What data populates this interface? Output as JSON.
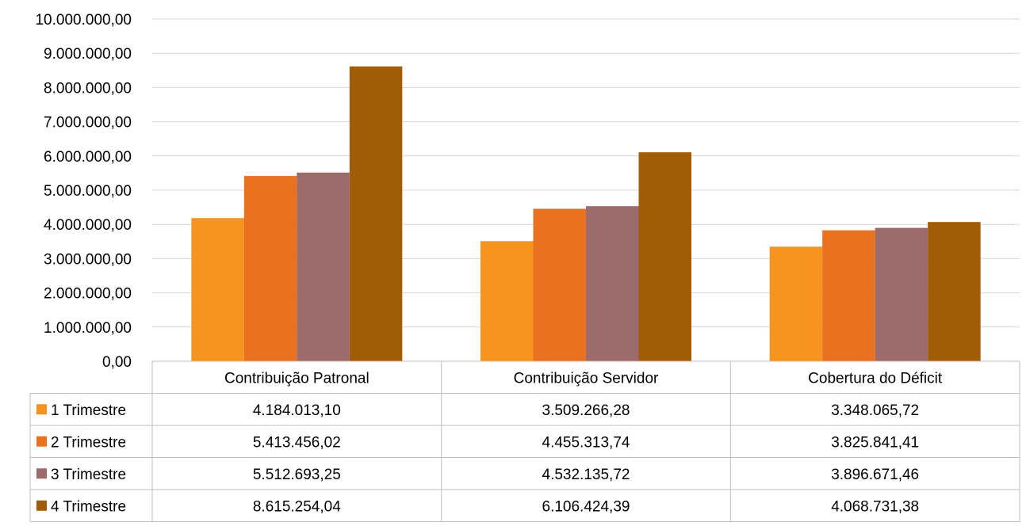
{
  "chart_data": {
    "type": "bar",
    "categories": [
      "Contribuição Patronal",
      "Contribuição Servidor",
      "Cobertura do Déficit"
    ],
    "series": [
      {
        "name": "1 Trimestre",
        "color": "#F79420",
        "values": [
          4184013.1,
          3509266.28,
          3348065.72
        ],
        "labels": [
          "4.184.013,10",
          "3.509.266,28",
          "3.348.065,72"
        ]
      },
      {
        "name": "2 Trimestre",
        "color": "#E97120",
        "values": [
          5413456.02,
          4455313.74,
          3825841.41
        ],
        "labels": [
          "5.413.456,02",
          "4.455.313,74",
          "3.825.841,41"
        ]
      },
      {
        "name": "3 Trimestre",
        "color": "#9C6B6B",
        "values": [
          5512693.25,
          4532135.72,
          3896671.46
        ],
        "labels": [
          "5.512.693,25",
          "4.532.135,72",
          "3.896.671,46"
        ]
      },
      {
        "name": "4 Trimestre",
        "color": "#A15C06",
        "values": [
          8615254.04,
          6106424.39,
          4068731.38
        ],
        "labels": [
          "8.615.254,04",
          "6.106.424,39",
          "4.068.731,38"
        ]
      }
    ],
    "ylim": [
      0,
      10000000
    ],
    "yticks": [
      0,
      1000000,
      2000000,
      3000000,
      4000000,
      5000000,
      6000000,
      7000000,
      8000000,
      9000000,
      10000000
    ],
    "ytick_labels": [
      "0,00",
      "1.000.000,00",
      "2.000.000,00",
      "3.000.000,00",
      "4.000.000,00",
      "5.000.000,00",
      "6.000.000,00",
      "7.000.000,00",
      "8.000.000,00",
      "9.000.000,00",
      "10.000.000,00"
    ],
    "grid": true,
    "legend": "data-table-below",
    "gridline_color": "#D9D9D9",
    "table_border_color": "#BFBFBF"
  }
}
